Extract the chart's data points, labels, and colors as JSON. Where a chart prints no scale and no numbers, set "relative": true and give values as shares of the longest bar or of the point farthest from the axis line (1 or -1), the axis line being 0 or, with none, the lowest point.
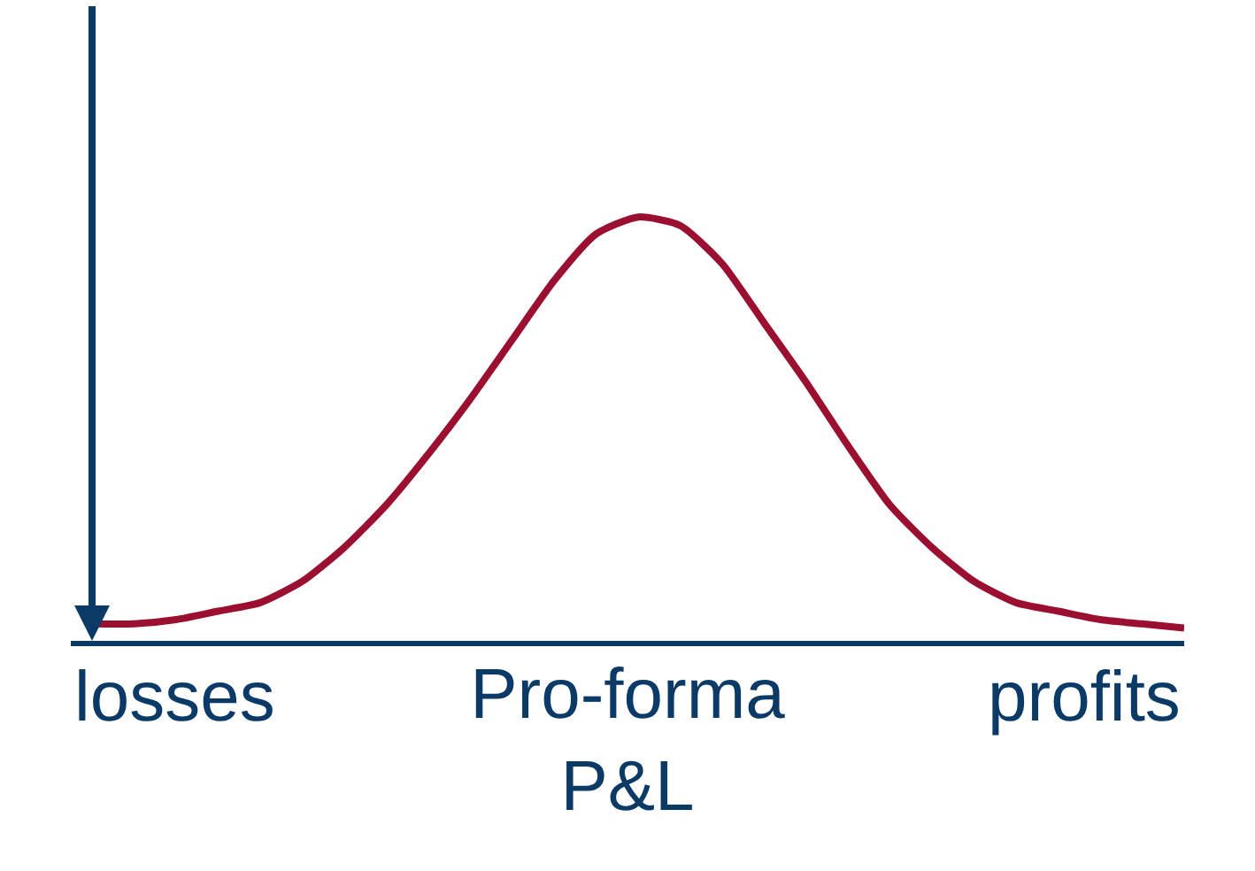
{
  "chart_data": {
    "type": "line",
    "relative": true,
    "xlabel": "Pro-forma P&L",
    "categories": [
      null,
      null,
      null,
      null,
      null,
      null,
      null,
      null,
      null,
      null,
      null,
      null,
      null,
      null,
      null,
      null,
      null,
      null,
      null,
      null,
      null,
      null,
      null,
      null,
      null,
      null,
      null
    ],
    "series": [
      {
        "color": "#9b1030",
        "values": [
          0.04,
          0.04,
          0.05,
          0.07,
          0.09,
          0.14,
          0.22,
          0.32,
          0.44,
          0.57,
          0.71,
          0.85,
          0.96,
          1.0,
          0.98,
          0.89,
          0.75,
          0.61,
          0.46,
          0.32,
          0.22,
          0.14,
          0.09,
          0.07,
          0.05,
          0.04,
          0.03
        ]
      }
    ],
    "annotations": [
      "losses",
      "profits"
    ],
    "marker": "none",
    "line_style": "solid",
    "legend": false,
    "tick_labels": false
  }
}
